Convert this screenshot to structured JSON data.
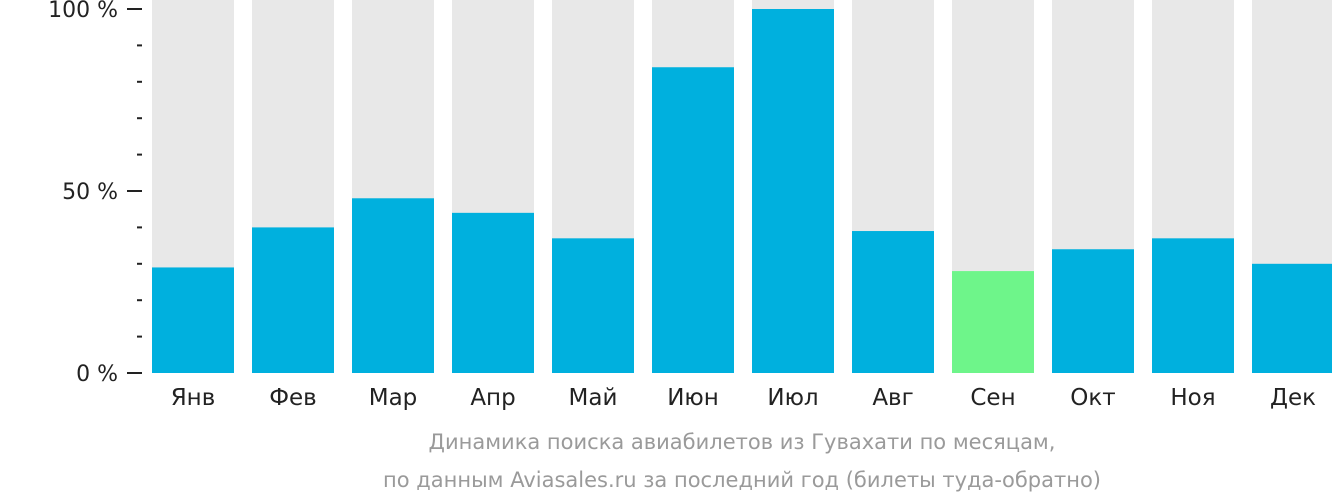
{
  "chart_data": {
    "type": "bar",
    "categories": [
      "Янв",
      "Фев",
      "Мар",
      "Апр",
      "Май",
      "Июн",
      "Июл",
      "Авг",
      "Сен",
      "Окт",
      "Ноя",
      "Дек"
    ],
    "values": [
      29,
      40,
      48,
      44,
      37,
      84,
      100,
      39,
      28,
      34,
      37,
      30
    ],
    "ylim": [
      0,
      100
    ],
    "y_ticks": [
      {
        "value": 0,
        "label": "0 %"
      },
      {
        "value": 50,
        "label": "50 %"
      },
      {
        "value": 100,
        "label": "100 %"
      }
    ],
    "y_minor_step": 10,
    "highlight_index": 8,
    "colors": {
      "bar": "#00b0de",
      "highlight": "#6ef58a",
      "background_bar": "#e8e8e8",
      "axis_text": "#222222"
    },
    "caption_line1": "Динамика поиска авиабилетов из Гувахати по месяцам,",
    "caption_line2": "по данным Aviasales.ru за последний год (билеты туда-обратно)"
  }
}
